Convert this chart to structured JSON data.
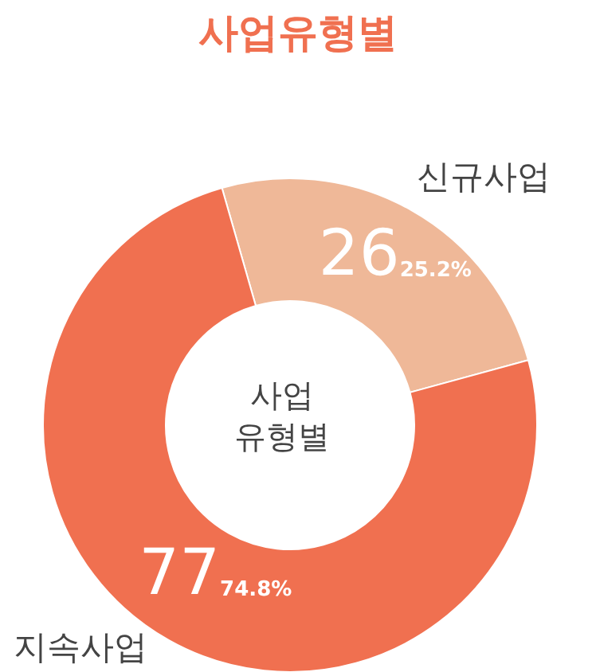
{
  "chart_data": {
    "type": "donut",
    "title": "사업유형별",
    "categories": [
      "신규사업",
      "지속사업"
    ],
    "values": [
      25.2,
      74.8
    ],
    "colors": [
      "#efb898",
      "#f07050"
    ],
    "value_labels": [
      "25.2%",
      "74.8%"
    ],
    "annotations": [
      "사업\n유형별",
      {
        "text": "26",
        "x": "신규사업"
      },
      {
        "text": "77",
        "x": "지속사업"
      }
    ]
  }
}
